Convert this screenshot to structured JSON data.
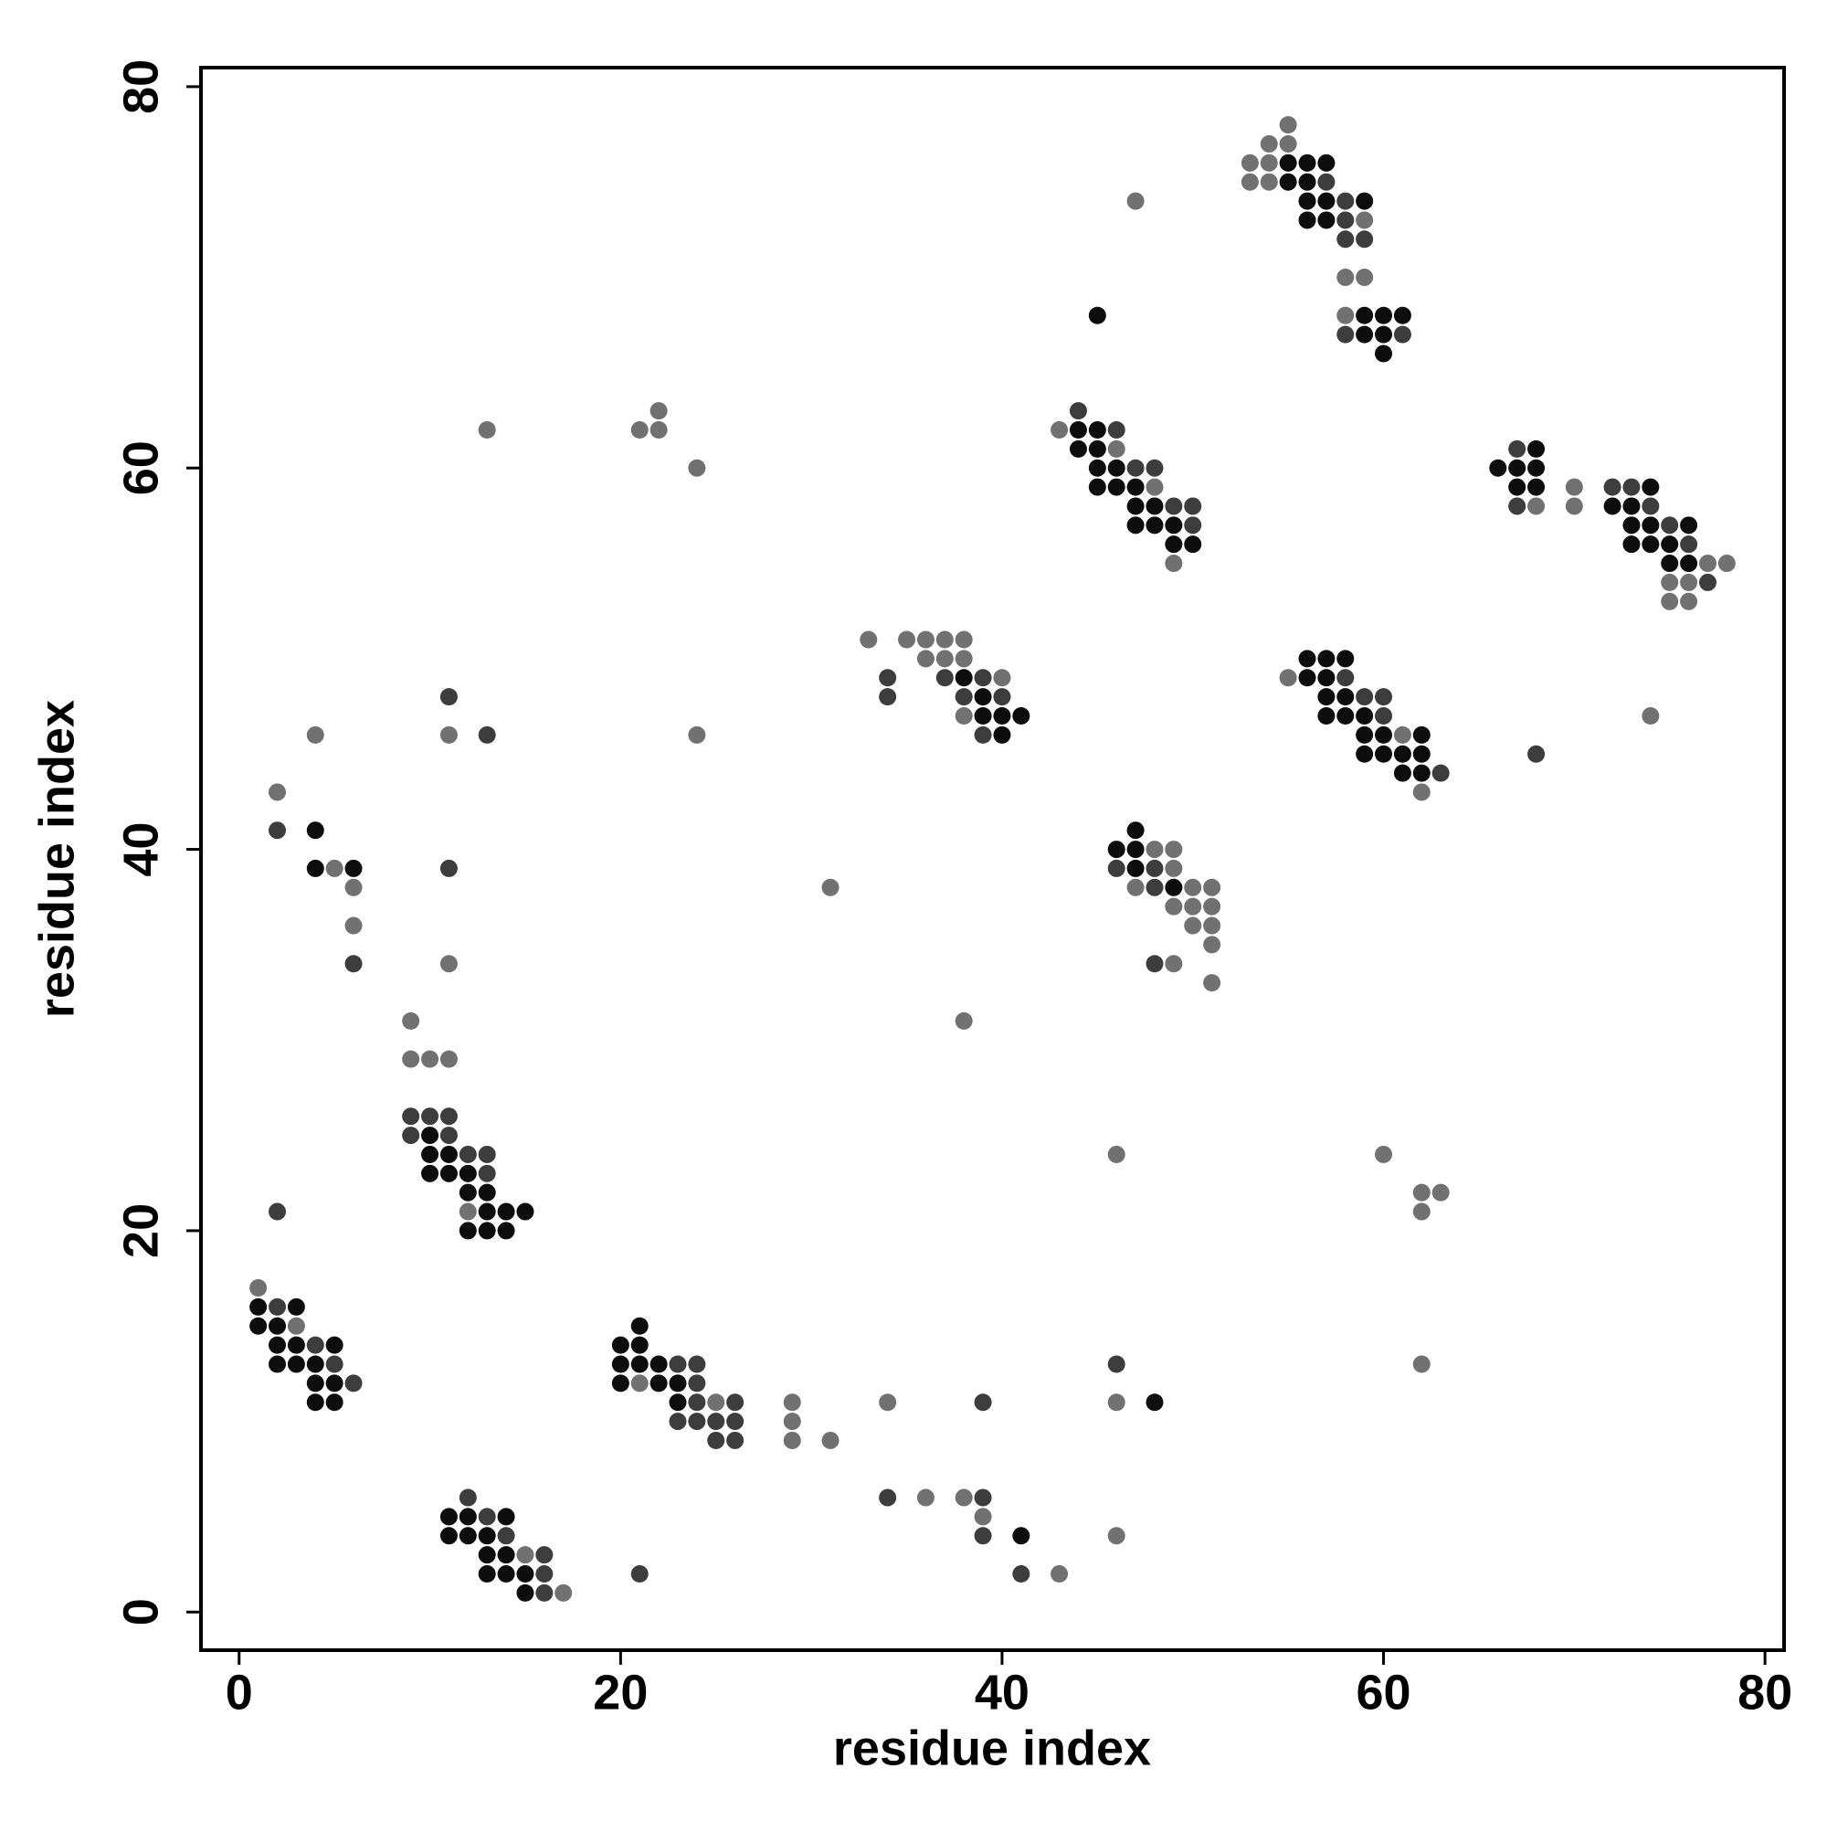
{
  "chart_data": {
    "type": "scatter",
    "xlabel": "residue index",
    "ylabel": "residue index",
    "xlim": [
      -2,
      81
    ],
    "ylim": [
      -2,
      81
    ],
    "xticks": [
      0,
      20,
      40,
      60,
      80
    ],
    "yticks": [
      0,
      20,
      40,
      60,
      80
    ],
    "grid": false,
    "series": [
      {
        "color": "#0d0d0d",
        "x": [
          1,
          3,
          1,
          2,
          2,
          3,
          5,
          2,
          3,
          4,
          4,
          5,
          4,
          5,
          4,
          4,
          6,
          10,
          10,
          11,
          10,
          11,
          12,
          12,
          13,
          13,
          14,
          15,
          12,
          13,
          14,
          11,
          12,
          14,
          11,
          12,
          13,
          13,
          14,
          13,
          14,
          15,
          15,
          21,
          20,
          21,
          20,
          21,
          22,
          20,
          22,
          23,
          23,
          41,
          48,
          38,
          39,
          39,
          40,
          41,
          40,
          47,
          46,
          47,
          47,
          49,
          44,
          45,
          44,
          45,
          45,
          46,
          45,
          46,
          47,
          47,
          48,
          47,
          48,
          49,
          49,
          50,
          45,
          55,
          56,
          57,
          55,
          56,
          56,
          57,
          59,
          56,
          57,
          59,
          60,
          61,
          59,
          60,
          60,
          56,
          57,
          58,
          56,
          57,
          57,
          58,
          57,
          58,
          59,
          59,
          60,
          62,
          59,
          60,
          61,
          62,
          61,
          62,
          68,
          66,
          67,
          68,
          67,
          68,
          74,
          72,
          73,
          73,
          74,
          76,
          73,
          74,
          75,
          75,
          76
        ],
        "values": [
          16,
          16,
          15,
          15,
          14,
          14,
          14,
          13,
          13,
          13,
          12,
          12,
          11,
          11,
          41,
          39,
          39,
          25,
          24,
          24,
          23,
          23,
          23,
          22,
          22,
          21,
          21,
          21,
          20,
          20,
          20,
          5,
          5,
          5,
          4,
          4,
          4,
          3,
          3,
          2,
          2,
          2,
          1,
          15,
          14,
          14,
          13,
          13,
          13,
          12,
          12,
          12,
          11,
          4,
          11,
          49,
          48,
          47,
          47,
          47,
          46,
          41,
          40,
          40,
          39,
          38,
          62,
          62,
          61,
          61,
          60,
          60,
          59,
          59,
          59,
          58,
          58,
          57,
          57,
          57,
          56,
          56,
          68,
          76,
          76,
          76,
          75,
          75,
          74,
          74,
          74,
          73,
          73,
          68,
          68,
          68,
          67,
          67,
          66,
          50,
          50,
          50,
          49,
          49,
          48,
          48,
          47,
          47,
          47,
          46,
          46,
          46,
          45,
          45,
          45,
          45,
          44,
          44,
          61,
          60,
          60,
          60,
          59,
          59,
          59,
          58,
          58,
          57,
          57,
          57,
          56,
          56,
          56,
          55,
          55
        ]
      },
      {
        "color": "#3d3d3d",
        "x": [
          2,
          4,
          5,
          6,
          2,
          2,
          6,
          11,
          13,
          11,
          9,
          10,
          11,
          9,
          11,
          12,
          13,
          13,
          12,
          13,
          14,
          16,
          16,
          16,
          21,
          23,
          24,
          24,
          24,
          26,
          23,
          24,
          25,
          26,
          25,
          26,
          39,
          34,
          39,
          39,
          41,
          46,
          34,
          37,
          39,
          34,
          38,
          40,
          39,
          46,
          48,
          48,
          48,
          44,
          46,
          47,
          48,
          49,
          50,
          50,
          57,
          58,
          58,
          58,
          59,
          58,
          61,
          58,
          59,
          60,
          60,
          63,
          68,
          67,
          67,
          72,
          73,
          74,
          75,
          76,
          77
        ],
        "values": [
          16,
          14,
          13,
          12,
          21,
          41,
          34,
          48,
          46,
          39,
          26,
          26,
          26,
          25,
          25,
          24,
          24,
          23,
          6,
          5,
          4,
          3,
          2,
          1,
          2,
          13,
          13,
          12,
          11,
          11,
          10,
          10,
          10,
          10,
          9,
          9,
          11,
          6,
          6,
          4,
          2,
          13,
          49,
          49,
          49,
          48,
          48,
          48,
          46,
          39,
          39,
          38,
          34,
          63,
          62,
          60,
          60,
          58,
          58,
          57,
          75,
          74,
          73,
          72,
          72,
          67,
          67,
          49,
          48,
          48,
          47,
          44,
          45,
          61,
          58,
          59,
          59,
          58,
          57,
          56,
          54
        ]
      },
      {
        "color": "#717171",
        "x": [
          1,
          3,
          2,
          5,
          6,
          6,
          4,
          11,
          11,
          9,
          9,
          10,
          11,
          12,
          15,
          17,
          13,
          21,
          22,
          22,
          24,
          24,
          21,
          25,
          29,
          29,
          29,
          31,
          34,
          36,
          38,
          39,
          43,
          46,
          46,
          46,
          60,
          62,
          63,
          62,
          62,
          31,
          38,
          33,
          35,
          36,
          37,
          38,
          36,
          37,
          38,
          40,
          38,
          48,
          49,
          49,
          47,
          50,
          51,
          49,
          50,
          51,
          50,
          51,
          51,
          49,
          51,
          43,
          46,
          48,
          49,
          47,
          55,
          54,
          55,
          53,
          54,
          53,
          54,
          59,
          58,
          59,
          58,
          55,
          61,
          62,
          68,
          70,
          70,
          77,
          78,
          75,
          76,
          75,
          76,
          74
        ],
        "values": [
          17,
          15,
          43,
          39,
          38,
          36,
          46,
          46,
          34,
          31,
          29,
          29,
          29,
          21,
          3,
          1,
          62,
          62,
          63,
          62,
          60,
          46,
          12,
          11,
          11,
          10,
          9,
          9,
          11,
          6,
          6,
          5,
          2,
          4,
          11,
          24,
          24,
          22,
          22,
          21,
          13,
          38,
          31,
          51,
          51,
          51,
          51,
          51,
          50,
          50,
          50,
          49,
          47,
          40,
          40,
          39,
          38,
          38,
          38,
          37,
          37,
          37,
          36,
          36,
          35,
          34,
          33,
          62,
          61,
          59,
          55,
          74,
          78,
          77,
          77,
          76,
          76,
          75,
          75,
          73,
          70,
          70,
          68,
          49,
          46,
          43,
          58,
          59,
          58,
          55,
          55,
          54,
          54,
          53,
          53,
          47
        ]
      }
    ]
  }
}
